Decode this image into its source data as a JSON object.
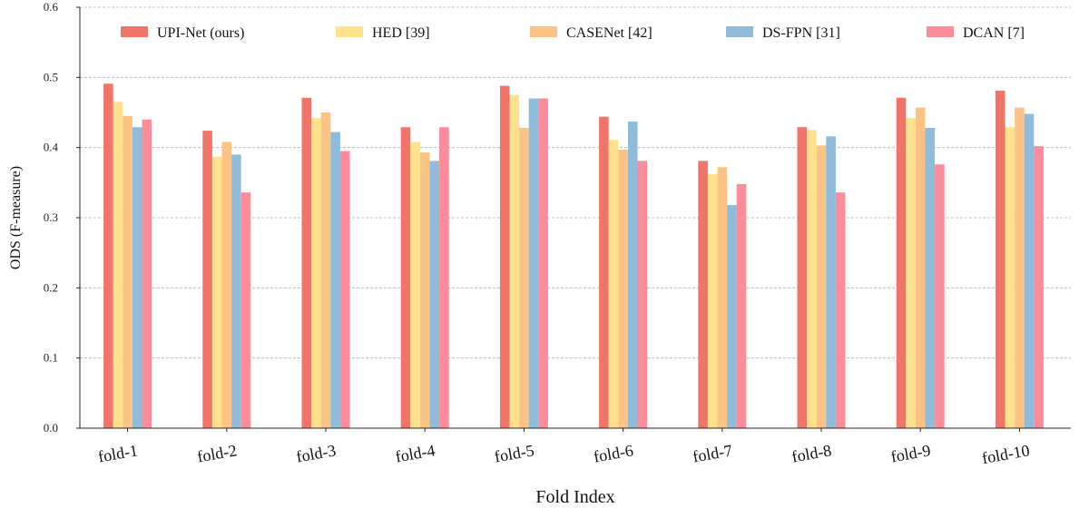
{
  "chart_data": {
    "type": "bar",
    "title": "",
    "xlabel": "Fold Index",
    "ylabel": "ODS (F-measure)",
    "ylim": [
      0,
      0.6
    ],
    "yticks": [
      "0.0",
      "0.1",
      "0.2",
      "0.3",
      "0.4",
      "0.5",
      "0.6"
    ],
    "grid": "horizontal dashed",
    "legend_position": "top",
    "categories": [
      "fold-1",
      "fold-2",
      "fold-3",
      "fold-4",
      "fold-5",
      "fold-6",
      "fold-7",
      "fold-8",
      "fold-9",
      "fold-10"
    ],
    "series": [
      {
        "name": "UPI-Net (ours)",
        "color": "#f07468",
        "values": [
          0.491,
          0.424,
          0.471,
          0.429,
          0.488,
          0.444,
          0.381,
          0.429,
          0.471,
          0.481
        ]
      },
      {
        "name": "HED [39]",
        "color": "#fde18c",
        "values": [
          0.465,
          0.387,
          0.442,
          0.408,
          0.475,
          0.411,
          0.362,
          0.425,
          0.442,
          0.429
        ]
      },
      {
        "name": "CASENet [42]",
        "color": "#fbc484",
        "values": [
          0.445,
          0.408,
          0.45,
          0.393,
          0.428,
          0.397,
          0.372,
          0.403,
          0.457,
          0.457
        ]
      },
      {
        "name": "DS-FPN [31]",
        "color": "#8fbcdb",
        "values": [
          0.429,
          0.39,
          0.422,
          0.381,
          0.47,
          0.437,
          0.318,
          0.416,
          0.428,
          0.448
        ]
      },
      {
        "name": "DCAN [7]",
        "color": "#fd8c9a",
        "values": [
          0.44,
          0.336,
          0.395,
          0.429,
          0.47,
          0.381,
          0.348,
          0.336,
          0.376,
          0.402
        ]
      }
    ]
  }
}
